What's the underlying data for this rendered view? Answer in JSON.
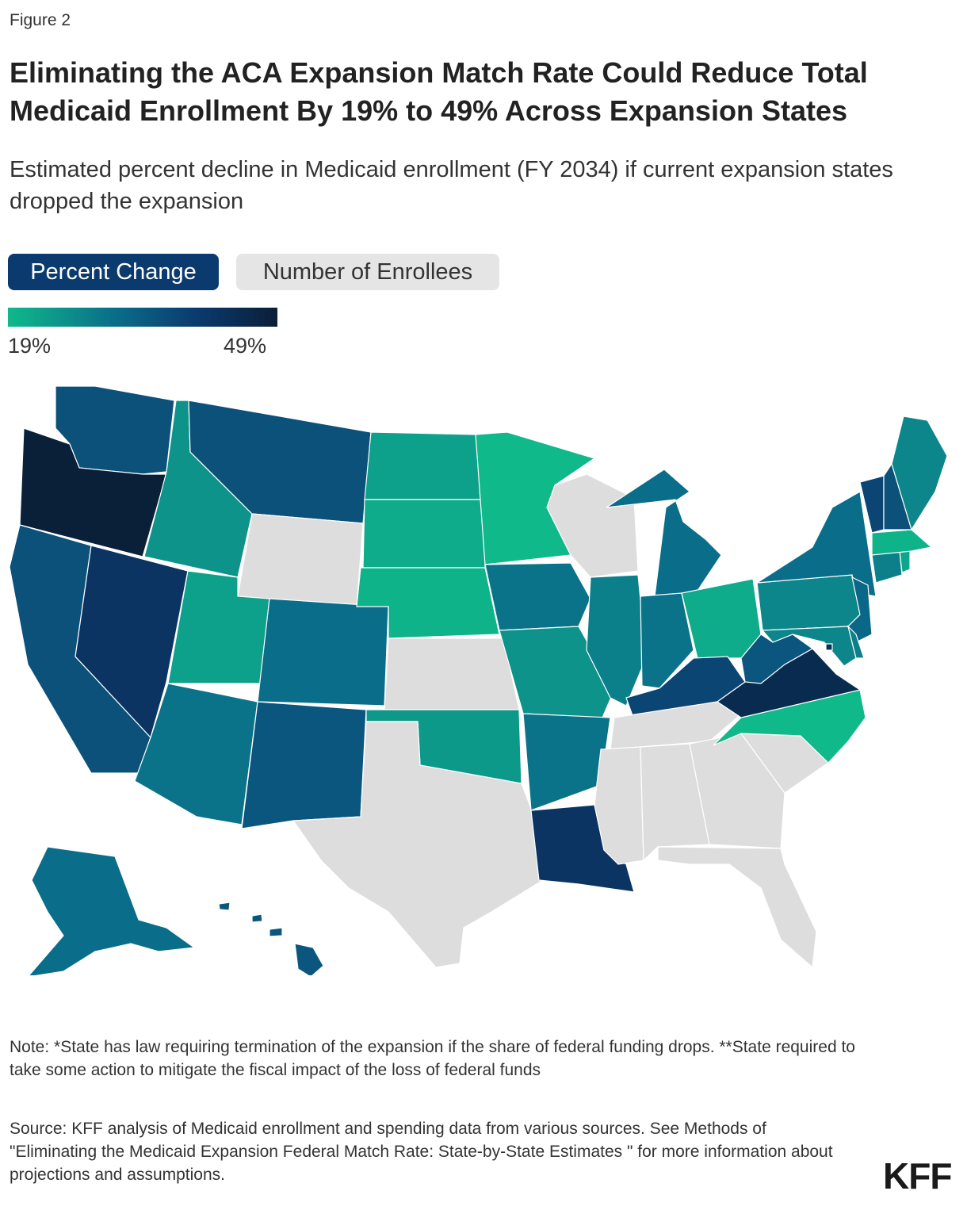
{
  "figure_label": "Figure 2",
  "title": "Eliminating the ACA Expansion Match Rate Could Reduce Total Medicaid Enrollment By 19% to 49% Across Expansion States",
  "subtitle": "Estimated percent decline in Medicaid enrollment (FY 2034) if current expansion states dropped the expansion",
  "tabs": {
    "active": "Percent Change",
    "inactive": "Number of Enrollees"
  },
  "legend": {
    "min_label": "19%",
    "max_label": "49%",
    "min": 19,
    "max": 49
  },
  "colors": {
    "low": "#0fb98a",
    "mid": "#0a6d8a",
    "high": "#0b3a6e",
    "max": "#0a1f38",
    "non_expansion": "#dddddd"
  },
  "map_data": {
    "type": "choropleth",
    "metric": "Estimated percent decline in Medicaid enrollment",
    "non_expansion_states": [
      "WY",
      "KS",
      "TX",
      "WI",
      "TN",
      "MS",
      "AL",
      "GA",
      "SC",
      "FL"
    ],
    "estimated_percent": {
      "OR": 49,
      "VA": 45,
      "NV": 42,
      "LA": 42,
      "DC": 44,
      "WA": 36,
      "MT": 36,
      "CA": 36,
      "KY": 38,
      "VT": 38,
      "NH": 36,
      "NM": 35,
      "HI": 35,
      "WV": 35,
      "AZ": 30,
      "CO": 31,
      "AK": 31,
      "IA": 30,
      "MI": 31,
      "NY": 31,
      "NJ": 32,
      "AR": 30,
      "IN": 30,
      "IL": 28,
      "PA": 27,
      "CT": 28,
      "MD": 27,
      "DE": 28,
      "ME": 27,
      "ID": 25,
      "MO": 25,
      "OK": 24,
      "ND": 23,
      "UT": 23,
      "RI": 22,
      "SD": 21,
      "NE": 20,
      "MN": 19,
      "OH": 21,
      "NC": 19,
      "MA": 20
    }
  },
  "note": "Note: *State has law requiring termination of the expansion if the share of federal funding drops. **State required to take some action to mitigate the fiscal impact of the loss of federal funds",
  "source": "Source: KFF analysis of Medicaid enrollment and spending data from various sources. See Methods of \"Eliminating the Medicaid Expansion Federal Match Rate: State-by-State Estimates \" for more information about projections and assumptions.",
  "logo_text": "KFF"
}
